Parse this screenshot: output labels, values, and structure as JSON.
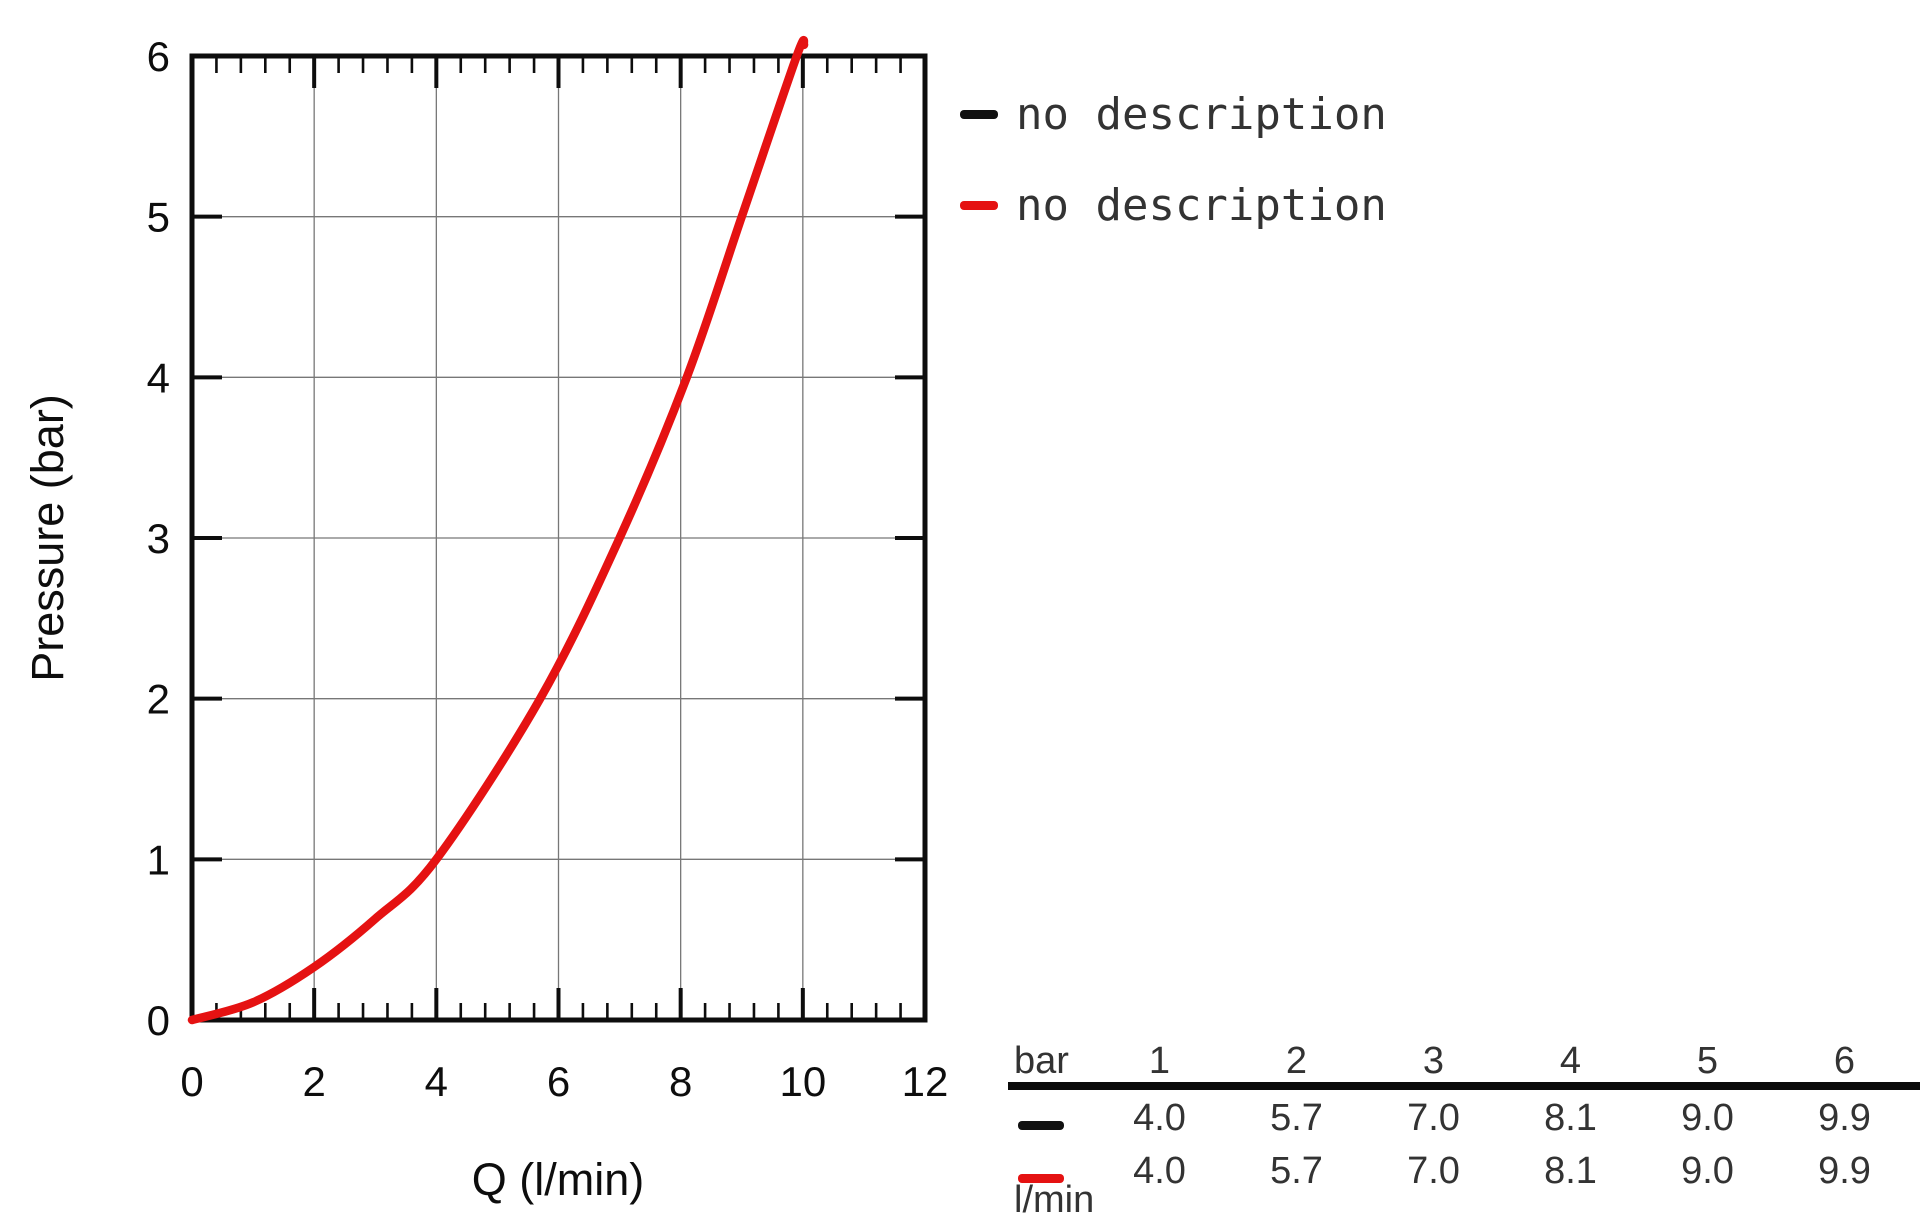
{
  "page": {
    "background": "#ffffff"
  },
  "legend": {
    "items": [
      {
        "label": "no description",
        "color": "#111111"
      },
      {
        "label": "no description",
        "color": "#e51212"
      }
    ]
  },
  "table": {
    "corner_label": "bar",
    "unit_label": "l/min",
    "pressure_headers": [
      "1",
      "2",
      "3",
      "4",
      "5",
      "6"
    ],
    "rows": [
      {
        "series": "black",
        "swatch_color": "#111111",
        "values": [
          "4.0",
          "5.7",
          "7.0",
          "8.1",
          "9.0",
          "9.9"
        ]
      },
      {
        "series": "red",
        "swatch_color": "#e51212",
        "values": [
          "4.0",
          "5.7",
          "7.0",
          "8.1",
          "9.0",
          "9.9"
        ]
      }
    ]
  },
  "chart_data": {
    "type": "line",
    "title": "",
    "xlabel": "Q (l/min)",
    "ylabel": "Pressure (bar)",
    "xlim": [
      0,
      12
    ],
    "ylim": [
      0,
      6
    ],
    "x_major_ticks": [
      0,
      2,
      4,
      6,
      8,
      10,
      12
    ],
    "x_minor_step": 0.4,
    "y_major_ticks": [
      0,
      1,
      2,
      3,
      4,
      5,
      6
    ],
    "grid": true,
    "grid_color": "#777777",
    "spine_color": "#0d0d0d",
    "legend_position": "upper-right-outside",
    "series": [
      {
        "name": "no description",
        "color": "#111111",
        "pressures_bar": [
          1,
          2,
          3,
          4,
          5,
          6
        ],
        "flow_l_min": [
          4.0,
          5.7,
          7.0,
          8.1,
          9.0,
          9.9
        ]
      },
      {
        "name": "no description",
        "color": "#e51212",
        "pressures_bar": [
          1,
          2,
          3,
          4,
          5,
          6
        ],
        "flow_l_min": [
          4.0,
          5.7,
          7.0,
          8.1,
          9.0,
          9.9
        ]
      }
    ],
    "curve_points_q_p": [
      [
        0,
        0
      ],
      [
        1,
        0.11
      ],
      [
        2,
        0.33
      ],
      [
        3,
        0.63
      ],
      [
        4,
        1.0
      ],
      [
        5.7,
        2.0
      ],
      [
        7.0,
        3.0
      ],
      [
        8.1,
        4.0
      ],
      [
        9.0,
        5.0
      ],
      [
        9.9,
        6.0
      ],
      [
        10.02,
        6.07
      ]
    ]
  }
}
